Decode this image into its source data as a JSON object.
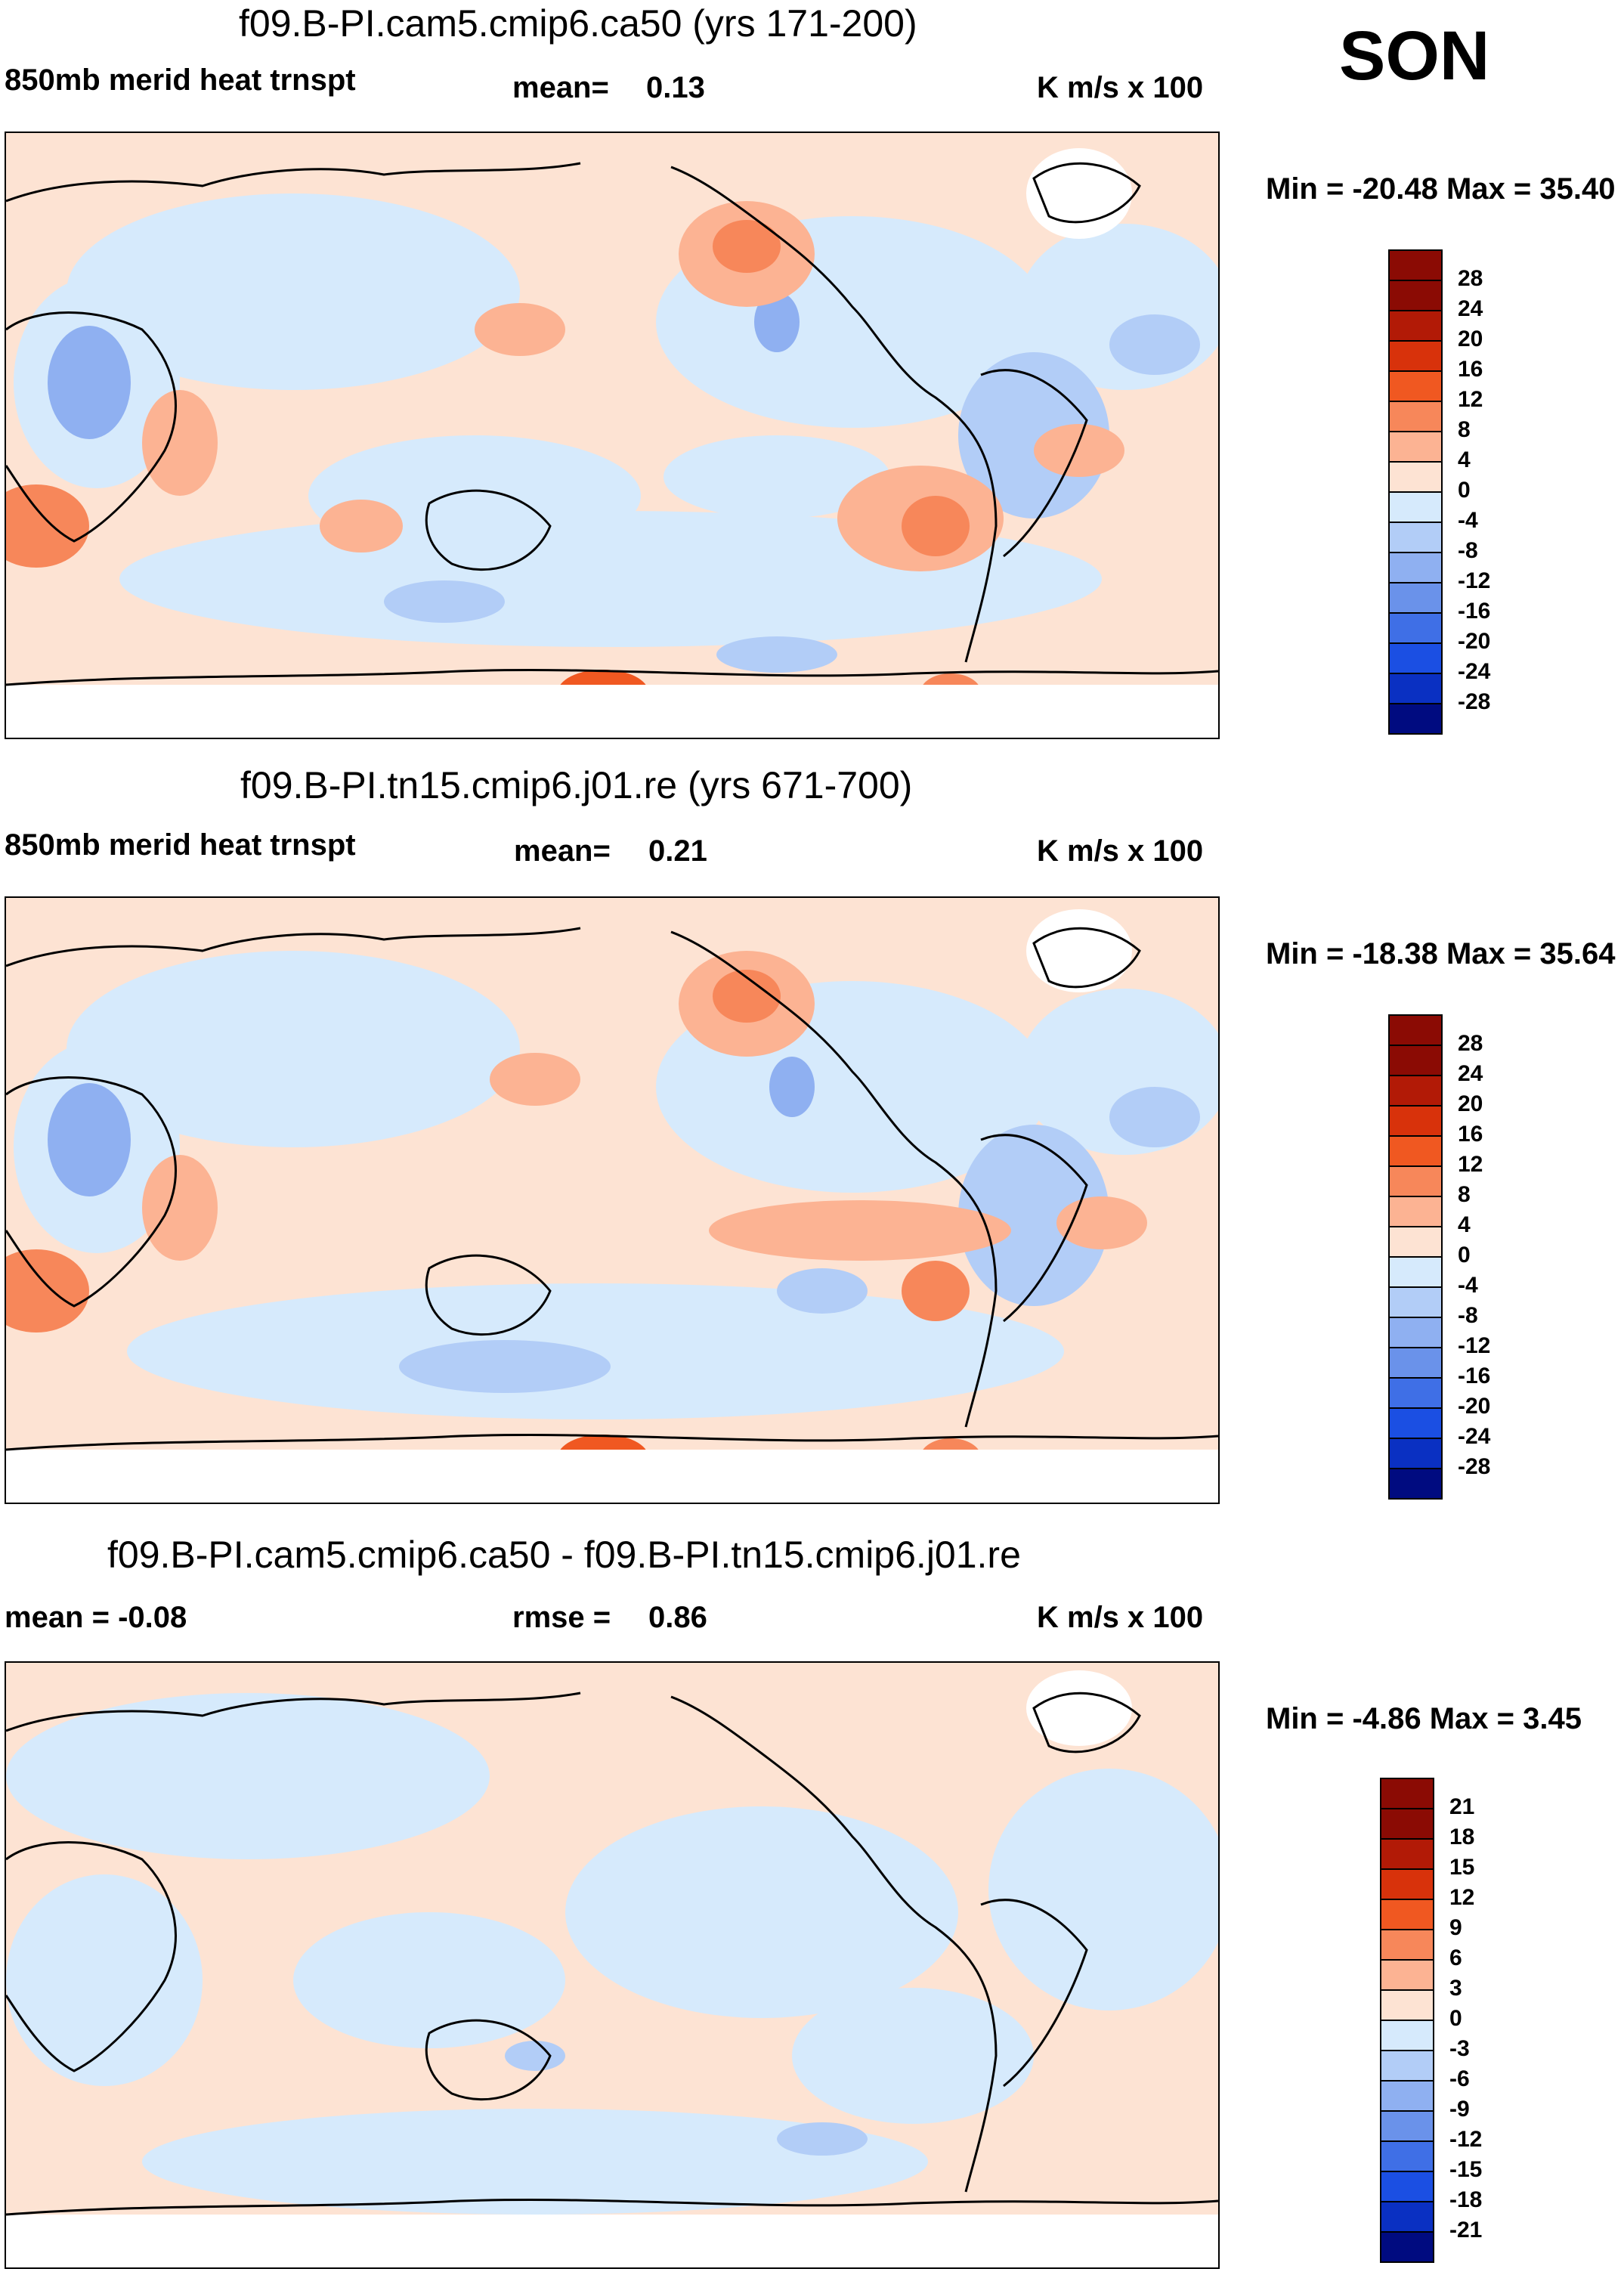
{
  "season": "SON",
  "units": "K m/s x 100",
  "panels": [
    {
      "title": "f09.B-PI.cam5.cmip6.ca50 (yrs 171-200)",
      "left_label": "850mb merid heat trnspt",
      "stat_label": "mean=",
      "stat_value": "0.13",
      "units": "K m/s x 100",
      "minmax": "Min = -20.48 Max =  35.40",
      "colorbar": {
        "labels": [
          "28",
          "24",
          "20",
          "16",
          "12",
          "8",
          "4",
          "0",
          "-4",
          "-8",
          "-12",
          "-16",
          "-20",
          "-24",
          "-28"
        ],
        "colors": [
          "#8b0b04",
          "#b21a06",
          "#d8320b",
          "#f05821",
          "#f7875a",
          "#fcb393",
          "#fde3d3",
          "#d6eafc",
          "#b2cdf7",
          "#8fb0f1",
          "#6a92ea",
          "#3f6fe6",
          "#1b4fe3",
          "#0a30c2",
          "#000b80"
        ]
      }
    },
    {
      "title": "f09.B-PI.tn15.cmip6.j01.re (yrs 671-700)",
      "left_label": "850mb merid heat trnspt",
      "stat_label": "mean=",
      "stat_value": "0.21",
      "units": "K m/s x 100",
      "minmax": "Min = -18.38 Max =  35.64",
      "colorbar": {
        "labels": [
          "28",
          "24",
          "20",
          "16",
          "12",
          "8",
          "4",
          "0",
          "-4",
          "-8",
          "-12",
          "-16",
          "-20",
          "-24",
          "-28"
        ],
        "colors": [
          "#8b0b04",
          "#b21a06",
          "#d8320b",
          "#f05821",
          "#f7875a",
          "#fcb393",
          "#fde3d3",
          "#d6eafc",
          "#b2cdf7",
          "#8fb0f1",
          "#6a92ea",
          "#3f6fe6",
          "#1b4fe3",
          "#0a30c2",
          "#000b80"
        ]
      }
    },
    {
      "title": "f09.B-PI.cam5.cmip6.ca50 - f09.B-PI.tn15.cmip6.j01.re",
      "left_label": "mean =  -0.08",
      "stat_label": "rmse =",
      "stat_value": "0.86",
      "units": "K m/s x 100",
      "minmax": "Min =  -4.86 Max =   3.45",
      "colorbar": {
        "labels": [
          "21",
          "18",
          "15",
          "12",
          "9",
          "6",
          "3",
          "0",
          "-3",
          "-6",
          "-9",
          "-12",
          "-15",
          "-18",
          "-21"
        ],
        "colors": [
          "#8b0b04",
          "#b21a06",
          "#d8320b",
          "#f05821",
          "#f7875a",
          "#fcb393",
          "#fde3d3",
          "#d6eafc",
          "#b2cdf7",
          "#8fb0f1",
          "#6a92ea",
          "#3f6fe6",
          "#1b4fe3",
          "#0a30c2",
          "#000b80"
        ]
      }
    }
  ]
}
